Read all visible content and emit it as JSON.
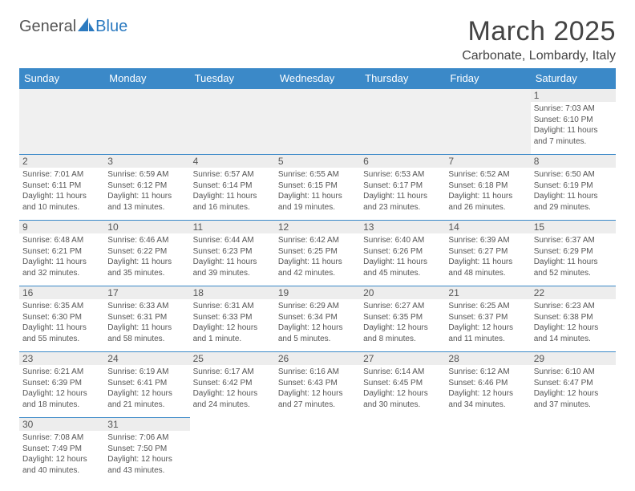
{
  "logo": {
    "general": "General",
    "blue": "Blue"
  },
  "title": "March 2025",
  "location": "Carbonate, Lombardy, Italy",
  "colors": {
    "header_bg": "#3b89c8",
    "header_text": "#ffffff",
    "border": "#3b89c8",
    "daynum_bg": "#ededed",
    "text": "#555555",
    "logo_blue": "#2b7ac0"
  },
  "day_headers": [
    "Sunday",
    "Monday",
    "Tuesday",
    "Wednesday",
    "Thursday",
    "Friday",
    "Saturday"
  ],
  "weeks": [
    [
      null,
      null,
      null,
      null,
      null,
      null,
      {
        "n": "1",
        "sunrise": "Sunrise: 7:03 AM",
        "sunset": "Sunset: 6:10 PM",
        "daylight": "Daylight: 11 hours and 7 minutes."
      }
    ],
    [
      {
        "n": "2",
        "sunrise": "Sunrise: 7:01 AM",
        "sunset": "Sunset: 6:11 PM",
        "daylight": "Daylight: 11 hours and 10 minutes."
      },
      {
        "n": "3",
        "sunrise": "Sunrise: 6:59 AM",
        "sunset": "Sunset: 6:12 PM",
        "daylight": "Daylight: 11 hours and 13 minutes."
      },
      {
        "n": "4",
        "sunrise": "Sunrise: 6:57 AM",
        "sunset": "Sunset: 6:14 PM",
        "daylight": "Daylight: 11 hours and 16 minutes."
      },
      {
        "n": "5",
        "sunrise": "Sunrise: 6:55 AM",
        "sunset": "Sunset: 6:15 PM",
        "daylight": "Daylight: 11 hours and 19 minutes."
      },
      {
        "n": "6",
        "sunrise": "Sunrise: 6:53 AM",
        "sunset": "Sunset: 6:17 PM",
        "daylight": "Daylight: 11 hours and 23 minutes."
      },
      {
        "n": "7",
        "sunrise": "Sunrise: 6:52 AM",
        "sunset": "Sunset: 6:18 PM",
        "daylight": "Daylight: 11 hours and 26 minutes."
      },
      {
        "n": "8",
        "sunrise": "Sunrise: 6:50 AM",
        "sunset": "Sunset: 6:19 PM",
        "daylight": "Daylight: 11 hours and 29 minutes."
      }
    ],
    [
      {
        "n": "9",
        "sunrise": "Sunrise: 6:48 AM",
        "sunset": "Sunset: 6:21 PM",
        "daylight": "Daylight: 11 hours and 32 minutes."
      },
      {
        "n": "10",
        "sunrise": "Sunrise: 6:46 AM",
        "sunset": "Sunset: 6:22 PM",
        "daylight": "Daylight: 11 hours and 35 minutes."
      },
      {
        "n": "11",
        "sunrise": "Sunrise: 6:44 AM",
        "sunset": "Sunset: 6:23 PM",
        "daylight": "Daylight: 11 hours and 39 minutes."
      },
      {
        "n": "12",
        "sunrise": "Sunrise: 6:42 AM",
        "sunset": "Sunset: 6:25 PM",
        "daylight": "Daylight: 11 hours and 42 minutes."
      },
      {
        "n": "13",
        "sunrise": "Sunrise: 6:40 AM",
        "sunset": "Sunset: 6:26 PM",
        "daylight": "Daylight: 11 hours and 45 minutes."
      },
      {
        "n": "14",
        "sunrise": "Sunrise: 6:39 AM",
        "sunset": "Sunset: 6:27 PM",
        "daylight": "Daylight: 11 hours and 48 minutes."
      },
      {
        "n": "15",
        "sunrise": "Sunrise: 6:37 AM",
        "sunset": "Sunset: 6:29 PM",
        "daylight": "Daylight: 11 hours and 52 minutes."
      }
    ],
    [
      {
        "n": "16",
        "sunrise": "Sunrise: 6:35 AM",
        "sunset": "Sunset: 6:30 PM",
        "daylight": "Daylight: 11 hours and 55 minutes."
      },
      {
        "n": "17",
        "sunrise": "Sunrise: 6:33 AM",
        "sunset": "Sunset: 6:31 PM",
        "daylight": "Daylight: 11 hours and 58 minutes."
      },
      {
        "n": "18",
        "sunrise": "Sunrise: 6:31 AM",
        "sunset": "Sunset: 6:33 PM",
        "daylight": "Daylight: 12 hours and 1 minute."
      },
      {
        "n": "19",
        "sunrise": "Sunrise: 6:29 AM",
        "sunset": "Sunset: 6:34 PM",
        "daylight": "Daylight: 12 hours and 5 minutes."
      },
      {
        "n": "20",
        "sunrise": "Sunrise: 6:27 AM",
        "sunset": "Sunset: 6:35 PM",
        "daylight": "Daylight: 12 hours and 8 minutes."
      },
      {
        "n": "21",
        "sunrise": "Sunrise: 6:25 AM",
        "sunset": "Sunset: 6:37 PM",
        "daylight": "Daylight: 12 hours and 11 minutes."
      },
      {
        "n": "22",
        "sunrise": "Sunrise: 6:23 AM",
        "sunset": "Sunset: 6:38 PM",
        "daylight": "Daylight: 12 hours and 14 minutes."
      }
    ],
    [
      {
        "n": "23",
        "sunrise": "Sunrise: 6:21 AM",
        "sunset": "Sunset: 6:39 PM",
        "daylight": "Daylight: 12 hours and 18 minutes."
      },
      {
        "n": "24",
        "sunrise": "Sunrise: 6:19 AM",
        "sunset": "Sunset: 6:41 PM",
        "daylight": "Daylight: 12 hours and 21 minutes."
      },
      {
        "n": "25",
        "sunrise": "Sunrise: 6:17 AM",
        "sunset": "Sunset: 6:42 PM",
        "daylight": "Daylight: 12 hours and 24 minutes."
      },
      {
        "n": "26",
        "sunrise": "Sunrise: 6:16 AM",
        "sunset": "Sunset: 6:43 PM",
        "daylight": "Daylight: 12 hours and 27 minutes."
      },
      {
        "n": "27",
        "sunrise": "Sunrise: 6:14 AM",
        "sunset": "Sunset: 6:45 PM",
        "daylight": "Daylight: 12 hours and 30 minutes."
      },
      {
        "n": "28",
        "sunrise": "Sunrise: 6:12 AM",
        "sunset": "Sunset: 6:46 PM",
        "daylight": "Daylight: 12 hours and 34 minutes."
      },
      {
        "n": "29",
        "sunrise": "Sunrise: 6:10 AM",
        "sunset": "Sunset: 6:47 PM",
        "daylight": "Daylight: 12 hours and 37 minutes."
      }
    ],
    [
      {
        "n": "30",
        "sunrise": "Sunrise: 7:08 AM",
        "sunset": "Sunset: 7:49 PM",
        "daylight": "Daylight: 12 hours and 40 minutes."
      },
      {
        "n": "31",
        "sunrise": "Sunrise: 7:06 AM",
        "sunset": "Sunset: 7:50 PM",
        "daylight": "Daylight: 12 hours and 43 minutes."
      },
      null,
      null,
      null,
      null,
      null
    ]
  ]
}
